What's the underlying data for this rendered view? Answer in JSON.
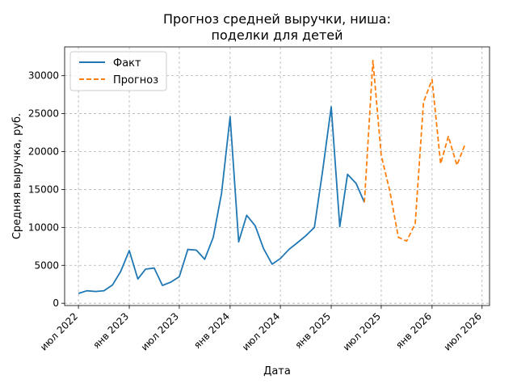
{
  "chart_data": {
    "type": "line",
    "title_lines": [
      "Прогноз средней выручки, ниша:",
      "поделки для детей"
    ],
    "xlabel": "Дата",
    "ylabel": "Средняя выручка, руб.",
    "grid": true,
    "legend_position": "top-left",
    "x_ticks": [
      {
        "date": "2022-07-01",
        "label": "июл 2022"
      },
      {
        "date": "2023-01-01",
        "label": "янв 2023"
      },
      {
        "date": "2023-07-01",
        "label": "июл 2023"
      },
      {
        "date": "2024-01-01",
        "label": "янв 2024"
      },
      {
        "date": "2024-07-01",
        "label": "июл 2024"
      },
      {
        "date": "2025-01-01",
        "label": "янв 2025"
      },
      {
        "date": "2025-07-01",
        "label": "июл 2025"
      },
      {
        "date": "2026-01-01",
        "label": "янв 2026"
      },
      {
        "date": "2026-07-01",
        "label": "июл 2026"
      }
    ],
    "y_ticks": [
      0,
      5000,
      10000,
      15000,
      20000,
      25000,
      30000
    ],
    "xlim": [
      "2022-05-12",
      "2026-07-28"
    ],
    "ylim": [
      -300,
      33800
    ],
    "series": [
      {
        "name": "Факт",
        "color": "#1f77b4",
        "style": "solid",
        "points": [
          [
            "2022-07-01",
            1300
          ],
          [
            "2022-08-01",
            1650
          ],
          [
            "2022-09-01",
            1550
          ],
          [
            "2022-10-01",
            1650
          ],
          [
            "2022-11-01",
            2400
          ],
          [
            "2022-12-01",
            4200
          ],
          [
            "2023-01-01",
            6950
          ],
          [
            "2023-02-01",
            3200
          ],
          [
            "2023-03-01",
            4500
          ],
          [
            "2023-04-01",
            4650
          ],
          [
            "2023-05-01",
            2350
          ],
          [
            "2023-06-01",
            2800
          ],
          [
            "2023-07-01",
            3500
          ],
          [
            "2023-08-01",
            7100
          ],
          [
            "2023-09-01",
            7000
          ],
          [
            "2023-10-01",
            5800
          ],
          [
            "2023-11-01",
            8700
          ],
          [
            "2023-12-01",
            14500
          ],
          [
            "2024-01-01",
            24600
          ],
          [
            "2024-02-01",
            8100
          ],
          [
            "2024-03-01",
            11600
          ],
          [
            "2024-04-01",
            10200
          ],
          [
            "2024-05-01",
            7200
          ],
          [
            "2024-06-01",
            5150
          ],
          [
            "2024-07-01",
            5900
          ],
          [
            "2024-08-01",
            7100
          ],
          [
            "2024-09-01",
            8000
          ],
          [
            "2024-10-01",
            8900
          ],
          [
            "2024-11-01",
            10000
          ],
          [
            "2024-12-01",
            17500
          ],
          [
            "2025-01-01",
            25900
          ],
          [
            "2025-02-01",
            10100
          ],
          [
            "2025-03-01",
            17000
          ],
          [
            "2025-04-01",
            15800
          ],
          [
            "2025-05-01",
            13300
          ]
        ]
      },
      {
        "name": "Прогноз",
        "color": "#ff7f0e",
        "style": "dashed",
        "points": [
          [
            "2025-05-01",
            13300
          ],
          [
            "2025-06-01",
            32000
          ],
          [
            "2025-07-01",
            19500
          ],
          [
            "2025-08-01",
            14800
          ],
          [
            "2025-09-01",
            8700
          ],
          [
            "2025-10-01",
            8200
          ],
          [
            "2025-11-01",
            10500
          ],
          [
            "2025-12-01",
            26500
          ],
          [
            "2026-01-01",
            29500
          ],
          [
            "2026-02-01",
            18400
          ],
          [
            "2026-03-01",
            22000
          ],
          [
            "2026-04-01",
            18200
          ],
          [
            "2026-05-01",
            21000
          ]
        ]
      }
    ]
  }
}
